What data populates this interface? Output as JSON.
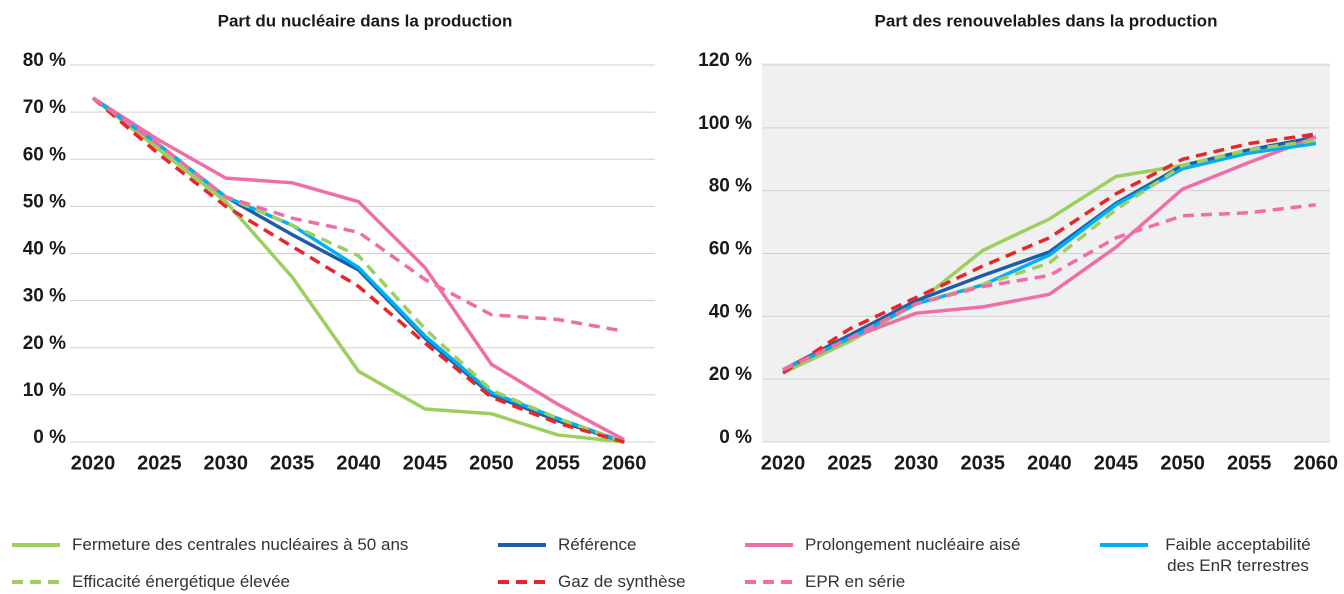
{
  "chart_data": [
    {
      "type": "line",
      "title": "Part du nucléaire dans la production",
      "categories": [
        "2020",
        "2025",
        "2030",
        "2035",
        "2040",
        "2045",
        "2050",
        "2055",
        "2060"
      ],
      "ylim": [
        0,
        80
      ],
      "yticks": [
        {
          "value": 0,
          "label": "0 %"
        },
        {
          "value": 10,
          "label": "10 %"
        },
        {
          "value": 20,
          "label": "20 %"
        },
        {
          "value": 30,
          "label": "30 %"
        },
        {
          "value": 40,
          "label": "40 %"
        },
        {
          "value": 50,
          "label": "50 %"
        },
        {
          "value": 60,
          "label": "60 %"
        },
        {
          "value": 70,
          "label": "70 %"
        },
        {
          "value": 80,
          "label": "80 %"
        }
      ],
      "grid": true,
      "background": "#ffffff",
      "series": [
        {
          "name": "Fermeture des centrales nucléaires à 50 ans",
          "color": "#9ccf5e",
          "dashed": false,
          "values": [
            73,
            62,
            51,
            35,
            15,
            7,
            6,
            1.5,
            0
          ]
        },
        {
          "name": "Référence",
          "color": "#1f5ca8",
          "dashed": false,
          "values": [
            73,
            63,
            52,
            44,
            36.5,
            22,
            10,
            4.5,
            0
          ]
        },
        {
          "name": "Prolongement nucléaire aisé",
          "color": "#ef6ea6",
          "dashed": false,
          "values": [
            73,
            64,
            56,
            55,
            51,
            37,
            16.5,
            8,
            0.5
          ]
        },
        {
          "name": "Faible acceptabilité des EnR terrestres",
          "color": "#00b0f0",
          "dashed": false,
          "values": [
            73,
            63,
            52,
            46,
            37,
            22.5,
            10.5,
            5,
            0
          ]
        },
        {
          "name": "Efficacité énergétique élevée",
          "color": "#9ccf5e",
          "dashed": true,
          "values": [
            73,
            63,
            52,
            46,
            39.5,
            24,
            11,
            5,
            0
          ]
        },
        {
          "name": "Gaz de synthèse",
          "color": "#e8262a",
          "dashed": true,
          "values": [
            73,
            61,
            50,
            41.5,
            33,
            21,
            9.5,
            4,
            0
          ]
        },
        {
          "name": "EPR en série",
          "color": "#ef6ea6",
          "dashed": true,
          "values": [
            73,
            63,
            52,
            47.5,
            44.5,
            34.5,
            27,
            26,
            23.5
          ]
        }
      ]
    },
    {
      "type": "line",
      "title": "Part des renouvelables dans la production",
      "categories": [
        "2020",
        "2025",
        "2030",
        "2035",
        "2040",
        "2045",
        "2050",
        "2055",
        "2060"
      ],
      "ylim": [
        0,
        120
      ],
      "yticks": [
        {
          "value": 0,
          "label": "0 %"
        },
        {
          "value": 20,
          "label": "20 %"
        },
        {
          "value": 40,
          "label": "40 %"
        },
        {
          "value": 60,
          "label": "60 %"
        },
        {
          "value": 80,
          "label": "80 %"
        },
        {
          "value": 100,
          "label": "100 %"
        },
        {
          "value": 120,
          "label": "120 %"
        }
      ],
      "grid": true,
      "background": "#f0f0f0",
      "series": [
        {
          "name": "Fermeture des centrales nucléaires à 50 ans",
          "color": "#9ccf5e",
          "dashed": false,
          "values": [
            22,
            32,
            44,
            61,
            71,
            84.5,
            88,
            93,
            95.5
          ]
        },
        {
          "name": "Référence",
          "color": "#1f5ca8",
          "dashed": false,
          "values": [
            23,
            34,
            45,
            53,
            60.5,
            76,
            88,
            93,
            97
          ]
        },
        {
          "name": "Prolongement nucléaire aisé",
          "color": "#ef6ea6",
          "dashed": false,
          "values": [
            23,
            33,
            41,
            43,
            47,
            62,
            80.5,
            89,
            97
          ]
        },
        {
          "name": "Faible acceptabilité des EnR terrestres",
          "color": "#00b0f0",
          "dashed": false,
          "values": [
            23,
            33,
            44,
            50,
            59.5,
            75.5,
            87,
            92,
            95
          ]
        },
        {
          "name": "Efficacité énergétique élevée",
          "color": "#9ccf5e",
          "dashed": true,
          "values": [
            23,
            33,
            44,
            50,
            57,
            74,
            88,
            93,
            96
          ]
        },
        {
          "name": "Gaz de synthèse",
          "color": "#e8262a",
          "dashed": true,
          "values": [
            22,
            36,
            46,
            56,
            65,
            79,
            90,
            95,
            98
          ]
        },
        {
          "name": "EPR en série",
          "color": "#ef6ea6",
          "dashed": true,
          "values": [
            23,
            33,
            44,
            49.5,
            53,
            65,
            72,
            73,
            75.5
          ]
        }
      ]
    }
  ]
}
